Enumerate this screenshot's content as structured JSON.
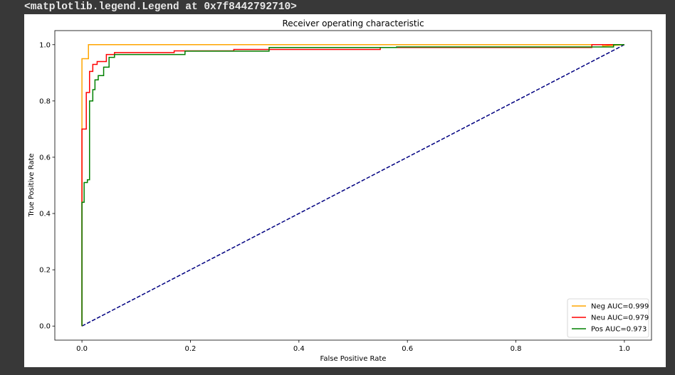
{
  "output_repr": "<matplotlib.legend.Legend at 0x7f8442792710>",
  "chart_data": {
    "type": "line",
    "title": "Receiver operating characteristic",
    "xlabel": "False Positive Rate",
    "ylabel": "True Positive Rate",
    "xlim": [
      -0.05,
      1.05
    ],
    "ylim": [
      -0.05,
      1.05
    ],
    "xticks": [
      0.0,
      0.2,
      0.4,
      0.6,
      0.8,
      1.0
    ],
    "yticks": [
      0.0,
      0.2,
      0.4,
      0.6,
      0.8,
      1.0
    ],
    "grid": false,
    "legend_position": "lower-right",
    "series": [
      {
        "name": "Neg AUC=0.999",
        "color": "#ffa500",
        "style": "step",
        "x": [
          0.0,
          0.0,
          0.0,
          0.0,
          0.012,
          0.012,
          0.96,
          0.96,
          1.0
        ],
        "y": [
          0.0,
          0.7,
          0.7,
          0.95,
          0.95,
          1.0,
          1.0,
          0.995,
          1.0
        ]
      },
      {
        "name": "Neu AUC=0.979",
        "color": "#ff0000",
        "style": "step",
        "x": [
          0.0,
          0.0,
          0.0,
          0.008,
          0.008,
          0.014,
          0.014,
          0.02,
          0.02,
          0.028,
          0.028,
          0.045,
          0.045,
          0.06,
          0.06,
          0.17,
          0.17,
          0.28,
          0.28,
          0.55,
          0.55,
          0.94,
          0.94,
          1.0
        ],
        "y": [
          0.0,
          0.44,
          0.7,
          0.7,
          0.83,
          0.83,
          0.905,
          0.905,
          0.93,
          0.93,
          0.94,
          0.94,
          0.965,
          0.965,
          0.972,
          0.972,
          0.978,
          0.978,
          0.983,
          0.983,
          0.99,
          0.99,
          1.0,
          1.0
        ]
      },
      {
        "name": "Pos AUC=0.973",
        "color": "#008000",
        "style": "step",
        "x": [
          0.0,
          0.0,
          0.004,
          0.004,
          0.01,
          0.01,
          0.014,
          0.014,
          0.02,
          0.02,
          0.024,
          0.024,
          0.03,
          0.03,
          0.04,
          0.04,
          0.05,
          0.05,
          0.06,
          0.06,
          0.19,
          0.19,
          0.345,
          0.345,
          0.58,
          0.58,
          0.98,
          0.98,
          1.0
        ],
        "y": [
          0.0,
          0.44,
          0.44,
          0.51,
          0.51,
          0.52,
          0.52,
          0.8,
          0.8,
          0.84,
          0.84,
          0.875,
          0.875,
          0.89,
          0.89,
          0.92,
          0.92,
          0.955,
          0.955,
          0.965,
          0.965,
          0.977,
          0.977,
          0.99,
          0.99,
          0.992,
          0.992,
          1.0,
          1.0
        ]
      },
      {
        "name": "",
        "color": "#000080",
        "style": "dashed",
        "x": [
          0.0,
          1.0
        ],
        "y": [
          0.0,
          1.0
        ]
      }
    ]
  }
}
